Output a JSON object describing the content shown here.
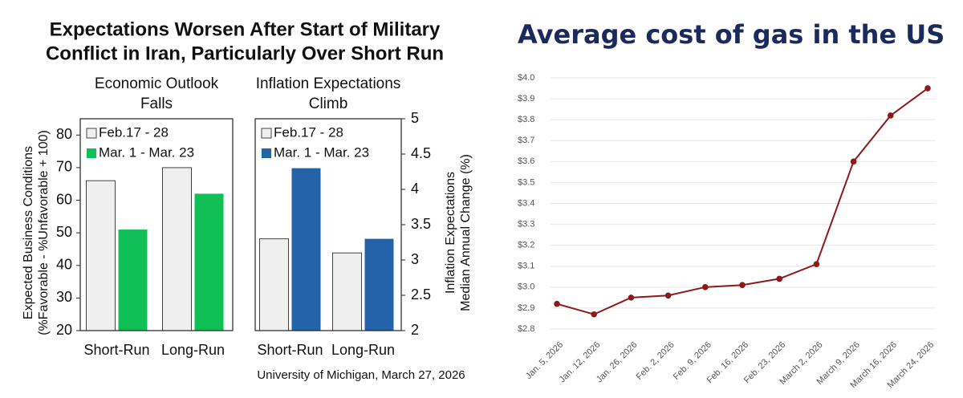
{
  "header": {
    "title": [
      "Expectations Worsen After Start of Military",
      "Conflict in Iran, Particularly Over Short Run"
    ],
    "source": "University of Michigan, March 27, 2026"
  },
  "chart_data": [
    {
      "type": "bar",
      "title": [
        "Economic Outlook",
        "Falls"
      ],
      "categories": [
        "Short-Run",
        "Long-Run"
      ],
      "series": [
        {
          "name": "Feb.17 - 28",
          "color": "#efefef",
          "values": [
            66,
            70
          ]
        },
        {
          "name": "Mar. 1 - Mar. 23",
          "color": "#10bf55",
          "values": [
            51,
            62
          ]
        }
      ],
      "ylabel": [
        "Expected Business Conditions",
        "(%Favorable - %Unfavorable + 100)"
      ],
      "ylim": [
        20,
        85
      ],
      "yticks": [
        20,
        30,
        40,
        50,
        60,
        70,
        80
      ],
      "axis_side": "left",
      "legend": "upper left"
    },
    {
      "type": "bar",
      "title": [
        "Inflation Expectations",
        "Climb"
      ],
      "categories": [
        "Short-Run",
        "Long-Run"
      ],
      "series": [
        {
          "name": "Feb.17 - 28",
          "color": "#efefef",
          "values": [
            3.3,
            3.1
          ]
        },
        {
          "name": "Mar. 1 - Mar. 23",
          "color": "#2563a8",
          "values": [
            4.3,
            3.3
          ]
        }
      ],
      "ylabel": [
        "Inflation Expectations",
        "Median Annual Change (%)"
      ],
      "ylim": [
        2,
        5
      ],
      "yticks": [
        2,
        2.5,
        3,
        3.5,
        4,
        4.5,
        5
      ],
      "axis_side": "right",
      "legend": "upper left"
    },
    {
      "type": "line",
      "title": "Average cost of gas in the US",
      "categories": [
        "Jan. 5, 2026",
        "Jan. 12, 2026",
        "Jan. 26, 2026",
        "Feb. 2, 2026",
        "Feb. 9, 2026",
        "Feb. 16, 2026",
        "Feb. 23, 2026",
        "March 2, 2026",
        "March 9, 2026",
        "March 16, 2026",
        "March 24, 2026"
      ],
      "values": [
        2.92,
        2.87,
        2.95,
        2.96,
        3.0,
        3.01,
        3.04,
        3.11,
        3.6,
        3.82,
        3.95
      ],
      "color": "#8b1a1a",
      "ylim": [
        2.8,
        4.0
      ],
      "yticks": [
        {
          "value": 2.8,
          "label": "$2.8"
        },
        {
          "value": 2.9,
          "label": "$2.9"
        },
        {
          "value": 3.0,
          "label": "$3.0"
        },
        {
          "value": 3.1,
          "label": "$3.1"
        },
        {
          "value": 3.2,
          "label": "$3.2"
        },
        {
          "value": 3.3,
          "label": "$3.3"
        },
        {
          "value": 3.4,
          "label": "$3.4"
        },
        {
          "value": 3.5,
          "label": "$3.5"
        },
        {
          "value": 3.6,
          "label": "$3.6"
        },
        {
          "value": 3.7,
          "label": "$3.7"
        },
        {
          "value": 3.8,
          "label": "$3.8"
        },
        {
          "value": 3.9,
          "label": "$3.9"
        },
        {
          "value": 4.0,
          "label": "$4.0"
        }
      ],
      "grid": true
    }
  ]
}
